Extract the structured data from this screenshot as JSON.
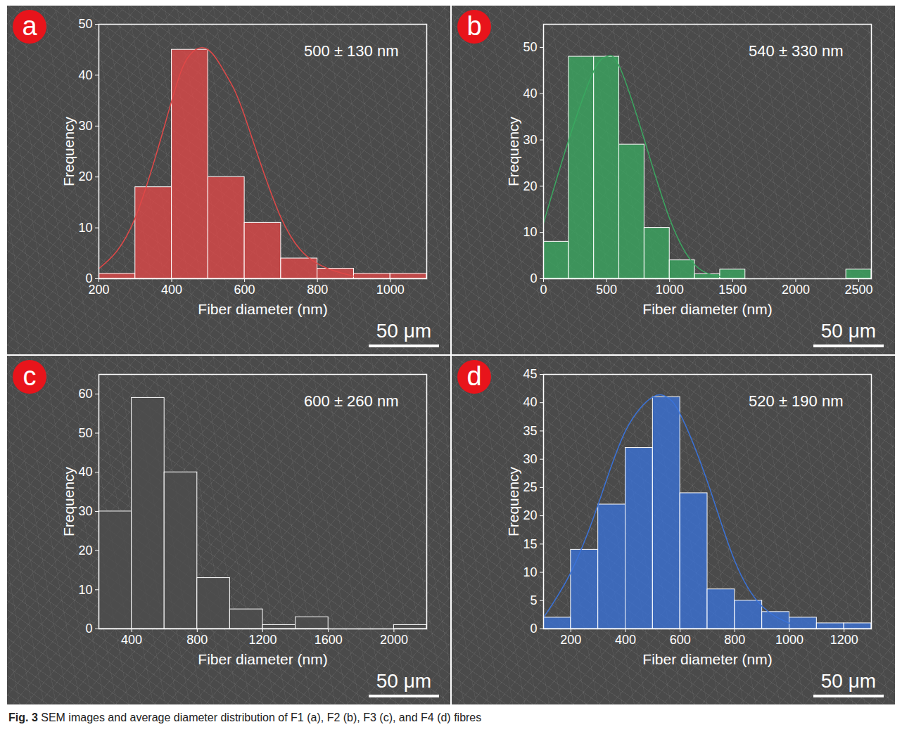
{
  "chart_data": [
    {
      "type": "histogram",
      "panel": "a",
      "annotation": "500 ± 130 nm",
      "scale_bar": "50 μm",
      "x_label": "Fiber diameter (nm)",
      "y_label": "Frequency",
      "color": "#e04848",
      "grid": false,
      "bins": [
        200,
        300,
        400,
        500,
        600,
        700,
        800,
        900,
        1000,
        1100
      ],
      "counts": [
        1,
        18,
        45,
        20,
        11,
        4,
        2,
        1,
        1
      ],
      "fit": {
        "x": [
          200,
          300,
          400,
          450,
          500,
          550,
          600,
          700,
          800,
          900
        ],
        "y": [
          2,
          12,
          35,
          44,
          45,
          40,
          32,
          12,
          3,
          0.5
        ]
      },
      "xlim": [
        200,
        1100
      ],
      "xticks": [
        200,
        400,
        600,
        800,
        1000
      ],
      "ylim": [
        0,
        50
      ],
      "yticks": [
        0,
        10,
        20,
        30,
        40,
        50
      ]
    },
    {
      "type": "histogram",
      "panel": "b",
      "annotation": "540 ± 330 nm",
      "scale_bar": "50 μm",
      "x_label": "Fiber diameter (nm)",
      "y_label": "Frequency",
      "color": "#3aa860",
      "grid": false,
      "bins": [
        0,
        200,
        400,
        600,
        800,
        1000,
        1200,
        1400,
        1600,
        1800,
        2000,
        2200,
        2400,
        2600
      ],
      "counts": [
        8,
        48,
        48,
        29,
        11,
        4,
        1,
        2,
        0,
        0,
        0,
        0,
        2
      ],
      "fit": {
        "x": [
          0,
          200,
          400,
          500,
          600,
          800,
          1000,
          1200,
          1400
        ],
        "y": [
          12,
          30,
          45,
          48,
          46,
          30,
          13,
          3,
          0.5
        ]
      },
      "xlim": [
        0,
        2600
      ],
      "xticks": [
        0,
        500,
        1000,
        1500,
        2000,
        2500
      ],
      "ylim": [
        0,
        55
      ],
      "yticks": [
        0,
        10,
        20,
        30,
        40,
        50
      ]
    },
    {
      "type": "histogram",
      "panel": "c",
      "annotation": "600 ± 260 nm",
      "scale_bar": "50 μm",
      "x_label": "Fiber diameter (nm)",
      "y_label": "Frequency",
      "color": "#4d4d4d",
      "grid": false,
      "bins": [
        200,
        400,
        600,
        800,
        1000,
        1200,
        1400,
        1600,
        1800,
        2000,
        2200
      ],
      "counts": [
        30,
        59,
        40,
        13,
        5,
        1,
        3,
        0,
        0,
        1
      ],
      "xlim": [
        200,
        2200
      ],
      "xticks": [
        400,
        800,
        1200,
        1600,
        2000
      ],
      "ylim": [
        0,
        65
      ],
      "yticks": [
        0,
        10,
        20,
        30,
        40,
        50,
        60
      ]
    },
    {
      "type": "histogram",
      "panel": "d",
      "annotation": "520 ± 190 nm",
      "scale_bar": "50 μm",
      "x_label": "Fiber diameter (nm)",
      "y_label": "Frequency",
      "color": "#3a72d8",
      "grid": false,
      "bins": [
        100,
        200,
        300,
        400,
        500,
        600,
        700,
        800,
        900,
        1000,
        1100,
        1200,
        1300
      ],
      "counts": [
        2,
        14,
        22,
        32,
        41,
        24,
        7,
        5,
        3,
        2,
        1,
        1
      ],
      "fit": {
        "x": [
          100,
          200,
          300,
          400,
          500,
          550,
          600,
          700,
          800,
          900,
          1000
        ],
        "y": [
          2,
          10,
          22,
          35,
          41,
          41,
          38,
          26,
          12,
          4,
          1
        ]
      },
      "xlim": [
        100,
        1300
      ],
      "xticks": [
        200,
        400,
        600,
        800,
        1000,
        1200
      ],
      "ylim": [
        0,
        45
      ],
      "yticks": [
        0,
        5,
        10,
        15,
        20,
        25,
        30,
        35,
        40,
        45
      ]
    }
  ],
  "caption_label": "Fig. 3",
  "caption": "SEM images and average diameter distribution of F1 (a), F2 (b), F3 (c), and F4 (d) fibres"
}
